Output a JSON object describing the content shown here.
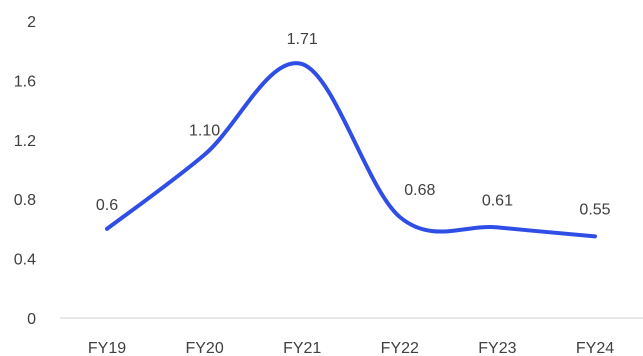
{
  "chart_data": {
    "type": "line",
    "title": "",
    "xlabel": "",
    "ylabel": "",
    "categories": [
      "FY19",
      "FY20",
      "FY21",
      "FY22",
      "FY23",
      "FY24"
    ],
    "series": [
      {
        "values": [
          0.6,
          1.1,
          1.71,
          0.68,
          0.61,
          0.55
        ],
        "labels": [
          "0.6",
          "1.10",
          "1.71",
          "0.68",
          "0.61",
          "0.55"
        ],
        "color": "#2f4ee6",
        "smooth": true
      }
    ],
    "ylim": [
      0,
      2
    ],
    "yticks": [
      0,
      0.4,
      0.8,
      1.2,
      1.6,
      2
    ],
    "ytick_labels": [
      "0",
      "0.4",
      "0.8",
      "1.2",
      "1.6",
      "2"
    ],
    "grid": false,
    "legend": "none"
  }
}
